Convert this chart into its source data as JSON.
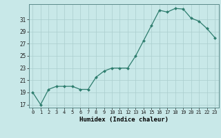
{
  "x": [
    0,
    1,
    2,
    3,
    4,
    5,
    6,
    7,
    8,
    9,
    10,
    11,
    12,
    13,
    14,
    15,
    16,
    17,
    18,
    19,
    20,
    21,
    22,
    23
  ],
  "y": [
    19,
    17,
    19.5,
    20,
    20,
    20,
    19.5,
    19.5,
    21.5,
    22.5,
    23,
    23,
    23,
    25,
    27.5,
    30,
    32.5,
    32.2,
    32.8,
    32.7,
    31.2,
    30.7,
    29.5,
    28
  ],
  "line_color": "#2E7D6E",
  "marker_color": "#2E7D6E",
  "bg_color": "#C8E8E8",
  "grid_color": "#AACECE",
  "grid_color_major": "#B8CECE",
  "xlabel": "Humidex (Indice chaleur)",
  "ylabel_ticks": [
    17,
    19,
    21,
    23,
    25,
    27,
    29,
    31
  ],
  "xlim": [
    -0.5,
    23.5
  ],
  "ylim": [
    16.5,
    33.5
  ]
}
